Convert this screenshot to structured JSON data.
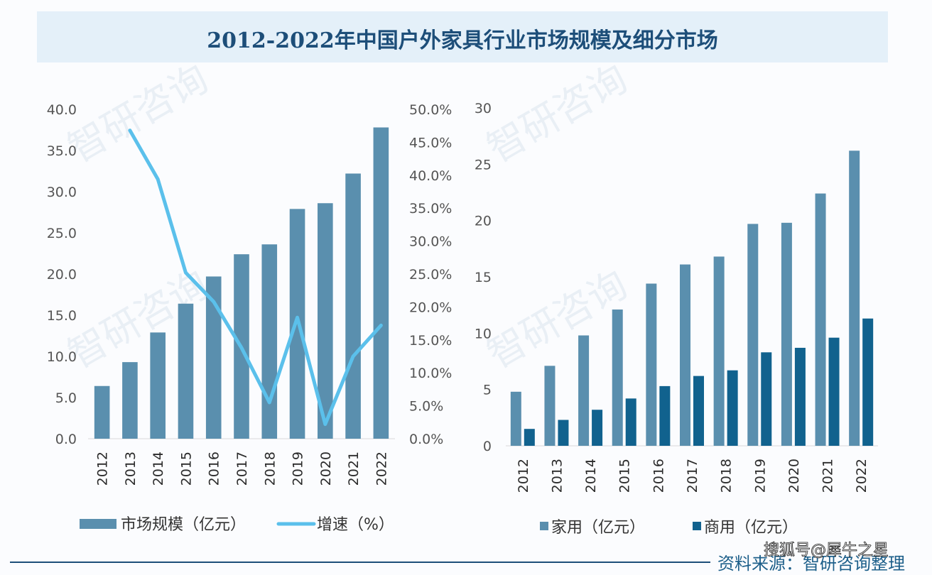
{
  "title": "2012-2022年中国户外家具行业市场规模及细分市场",
  "source_label": "资料来源：智研咨询整理",
  "watermark": "智研咨询",
  "sohu_watermark": "搜狐号@犀牛之星",
  "colors": {
    "market_bar": "#5a8fae",
    "growth_line": "#5bc0eb",
    "home_bar": "#5a8fae",
    "commercial_bar": "#11628e",
    "title_bg": "#e4f0f9",
    "title_text": "#1d4e79"
  },
  "chart_data": [
    {
      "type": "bar",
      "title": "",
      "categories": [
        "2012",
        "2013",
        "2014",
        "2015",
        "2016",
        "2017",
        "2018",
        "2019",
        "2020",
        "2021",
        "2022"
      ],
      "series": [
        {
          "name": "市场规模（亿元）",
          "kind": "bar",
          "axis": "left",
          "values": [
            6.4,
            9.3,
            12.9,
            16.4,
            19.7,
            22.4,
            23.6,
            27.9,
            28.6,
            32.2,
            37.8
          ]
        },
        {
          "name": "增速（%）",
          "kind": "line",
          "axis": "right",
          "values": [
            null,
            46.8,
            39.4,
            25.2,
            20.8,
            13.8,
            5.5,
            18.4,
            2.2,
            12.5,
            17.2
          ]
        }
      ],
      "y_left": {
        "ylim": [
          0,
          40
        ],
        "ticks": [
          "0.0",
          "5.0",
          "10.0",
          "15.0",
          "20.0",
          "25.0",
          "30.0",
          "35.0",
          "40.0"
        ]
      },
      "y_right": {
        "ylim": [
          0,
          50
        ],
        "ticks": [
          "0.0%",
          "5.0%",
          "10.0%",
          "15.0%",
          "20.0%",
          "25.0%",
          "30.0%",
          "35.0%",
          "40.0%",
          "45.0%",
          "50.0%"
        ]
      },
      "xlabel": "",
      "ylabel": "",
      "grid": false,
      "legend": {
        "placement": "bottom",
        "entries": [
          "市场规模（亿元）",
          "增速（%）"
        ]
      }
    },
    {
      "type": "bar",
      "title": "",
      "categories": [
        "2012",
        "2013",
        "2014",
        "2015",
        "2016",
        "2017",
        "2018",
        "2019",
        "2020",
        "2021",
        "2022"
      ],
      "series": [
        {
          "name": "家用（亿元）",
          "values": [
            4.8,
            7.1,
            9.8,
            12.1,
            14.4,
            16.1,
            16.8,
            19.7,
            19.8,
            22.4,
            26.2
          ]
        },
        {
          "name": "商用（亿元）",
          "values": [
            1.5,
            2.3,
            3.2,
            4.2,
            5.3,
            6.2,
            6.7,
            8.3,
            8.7,
            9.6,
            11.3
          ]
        }
      ],
      "ylim": [
        0,
        30
      ],
      "yticks": [
        "0",
        "5",
        "10",
        "15",
        "20",
        "25",
        "30"
      ],
      "xlabel": "",
      "ylabel": "",
      "grid": false,
      "legend": {
        "placement": "bottom",
        "entries": [
          "家用（亿元）",
          "商用（亿元）"
        ]
      }
    }
  ]
}
